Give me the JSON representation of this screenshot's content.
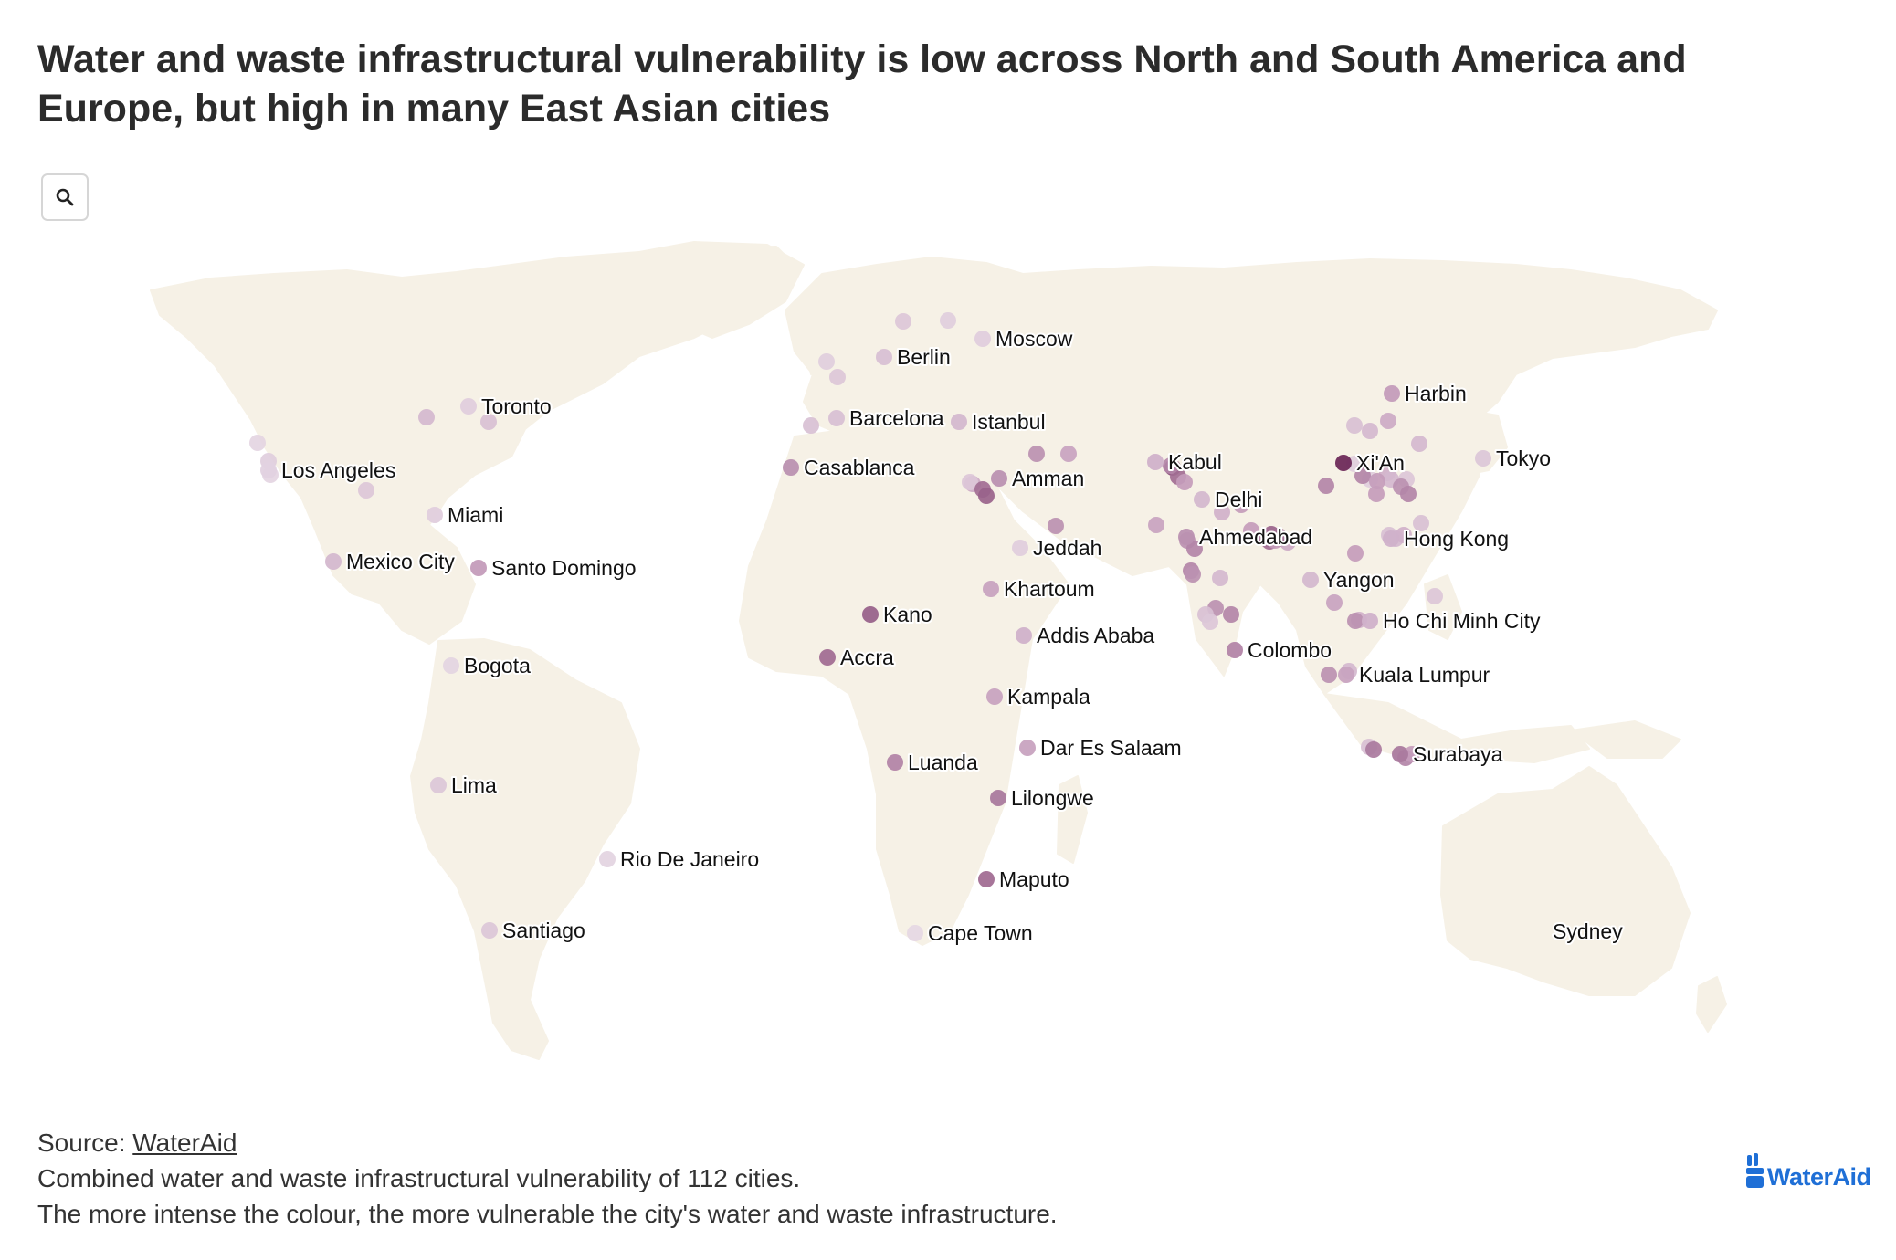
{
  "title": "Water and waste infrastructural vulnerability is low across North and South America and Europe, but high in many East Asian cities",
  "search": {
    "icon": "search-icon"
  },
  "footer": {
    "source_prefix": "Source: ",
    "source_link": "WaterAid",
    "line2": "Combined water and waste infrastructural vulnerability of 112 cities.",
    "line3": "The more intense the colour, the more vulnerable the city's water and waste infrastructure."
  },
  "logo": {
    "text": "WaterAid",
    "color": "#1f6fd6"
  },
  "colors": {
    "land": "#f6f1e6",
    "low": "#ece3ec",
    "mid": "#c49cbb",
    "high": "#6e2a5a"
  },
  "labeled_cities": [
    {
      "name": "Toronto",
      "v": 0.15
    },
    {
      "name": "Los Angeles",
      "v": 0.12
    },
    {
      "name": "Miami",
      "v": 0.15
    },
    {
      "name": "Mexico City",
      "v": 0.3
    },
    {
      "name": "Santo Domingo",
      "v": 0.5
    },
    {
      "name": "Bogota",
      "v": 0.1
    },
    {
      "name": "Lima",
      "v": 0.2
    },
    {
      "name": "Rio De Janeiro",
      "v": 0.1
    },
    {
      "name": "Santiago",
      "v": 0.2
    },
    {
      "name": "Berlin",
      "v": 0.25
    },
    {
      "name": "Moscow",
      "v": 0.15
    },
    {
      "name": "Barcelona",
      "v": 0.25
    },
    {
      "name": "Istanbul",
      "v": 0.3
    },
    {
      "name": "Casablanca",
      "v": 0.55
    },
    {
      "name": "Amman",
      "v": 0.55
    },
    {
      "name": "Jeddah",
      "v": 0.15
    },
    {
      "name": "Khartoum",
      "v": 0.45
    },
    {
      "name": "Kano",
      "v": 0.75
    },
    {
      "name": "Accra",
      "v": 0.7
    },
    {
      "name": "Addis Ababa",
      "v": 0.35
    },
    {
      "name": "Kampala",
      "v": 0.45
    },
    {
      "name": "Dar Es Salaam",
      "v": 0.45
    },
    {
      "name": "Luanda",
      "v": 0.6
    },
    {
      "name": "Lilongwe",
      "v": 0.65
    },
    {
      "name": "Maputo",
      "v": 0.7
    },
    {
      "name": "Cape Town",
      "v": 0.08
    },
    {
      "name": "Kabul",
      "v": 0.35
    },
    {
      "name": "Delhi",
      "v": 0.3
    },
    {
      "name": "Ahmedabad",
      "v": 0.55
    },
    {
      "name": "Colombo",
      "v": 0.6
    },
    {
      "name": "Harbin",
      "v": 0.5
    },
    {
      "name": "Xi'An",
      "v": 1.0
    },
    {
      "name": "Tokyo",
      "v": 0.2
    },
    {
      "name": "Hong Kong",
      "v": 0.35
    },
    {
      "name": "Yangon",
      "v": 0.3
    },
    {
      "name": "Ho Chi Minh City",
      "v": 0.35
    },
    {
      "name": "Kuala Lumpur",
      "v": 0.45
    },
    {
      "name": "Surabaya",
      "v": 0.65
    },
    {
      "name": "Sydney",
      "v": null
    }
  ],
  "unlabeled_cities": [
    0.1,
    0.15,
    0.1,
    0.2,
    0.3,
    0.25,
    0.2,
    0.15,
    0.15,
    0.2,
    0.25,
    0.4,
    0.55,
    0.45,
    0.55,
    0.2,
    0.7,
    0.75,
    0.85,
    0.7,
    0.5,
    0.6,
    0.45,
    0.55,
    0.6,
    0.5,
    0.35,
    0.6,
    0.55,
    0.3,
    0.75,
    0.8,
    0.7,
    0.65,
    0.5,
    0.4,
    0.25,
    0.3,
    0.4,
    0.3,
    0.6,
    0.5,
    0.35,
    0.3,
    0.2,
    0.15,
    0.6,
    0.5,
    0.55,
    0.6,
    0.25,
    0.3,
    0.5,
    0.35,
    0.25,
    0.45,
    0.6,
    0.55,
    0.25,
    0.2,
    0.15,
    0.2,
    0.55,
    0.7,
    0.5,
    0.7,
    0.25,
    0.65,
    0.6,
    0.5,
    0.35,
    0.55,
    0.3
  ]
}
